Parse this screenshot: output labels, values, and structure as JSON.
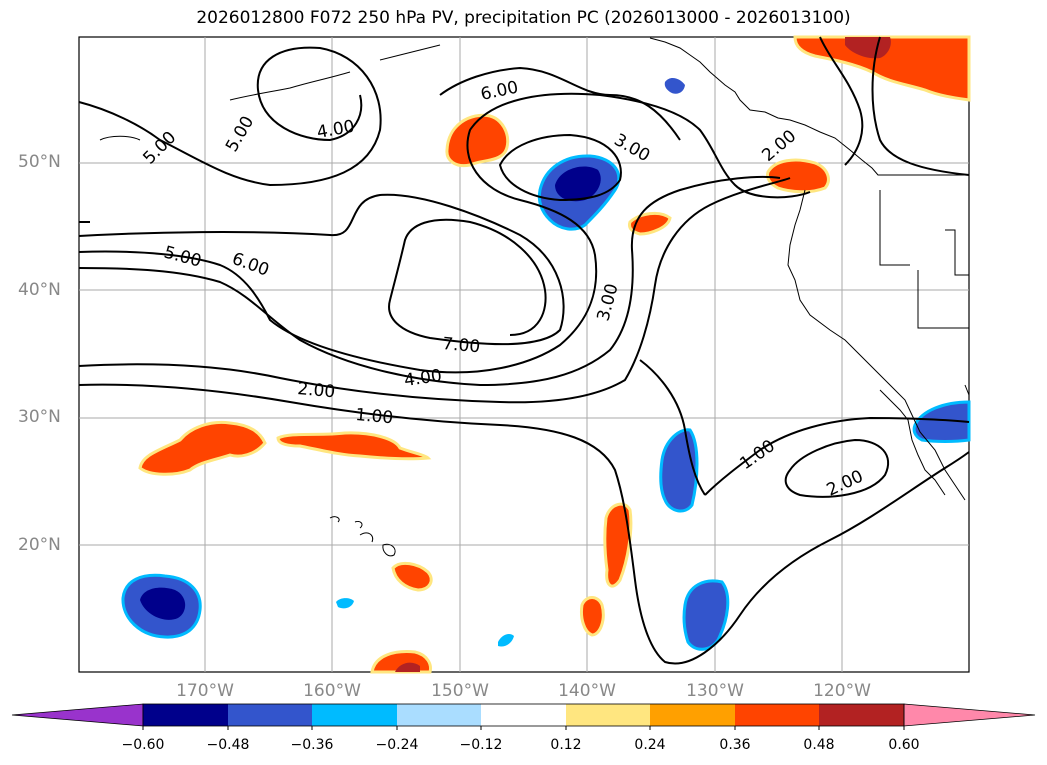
{
  "title": "2026012800 F072 250 hPa PV, precipitation PC (2026013000 - 2026013100)",
  "map": {
    "lat_labels": [
      "50°N",
      "40°N",
      "30°N",
      "20°N"
    ],
    "lon_labels": [
      "170°W",
      "160°W",
      "150°W",
      "140°W",
      "130°W",
      "120°W"
    ],
    "contour_labels": [
      "6.00",
      "5.00",
      "5.00",
      "4.00",
      "3.00",
      "5.00",
      "6.00",
      "7.00",
      "4.00",
      "2.00",
      "1.00",
      "3.00",
      "1.00",
      "2.00",
      "2.00"
    ]
  },
  "colorbar": {
    "ticks": [
      "−0.60",
      "−0.48",
      "−0.36",
      "−0.24",
      "−0.12",
      "0.12",
      "0.24",
      "0.36",
      "0.48",
      "0.60"
    ],
    "colors": [
      "#9933cc",
      "#00008b",
      "#3355cc",
      "#00bbff",
      "#aaddff",
      "#ffffff",
      "#ffe680",
      "#ffa000",
      "#ff4400",
      "#b22222",
      "#ff88aa"
    ]
  },
  "colors": {
    "strong_negative": "#00008b",
    "negative": "#3355cc",
    "weak_negative": "#00bbff",
    "weak_positive": "#ffe680",
    "positive": "#ff4400",
    "strong_positive": "#b22222"
  }
}
